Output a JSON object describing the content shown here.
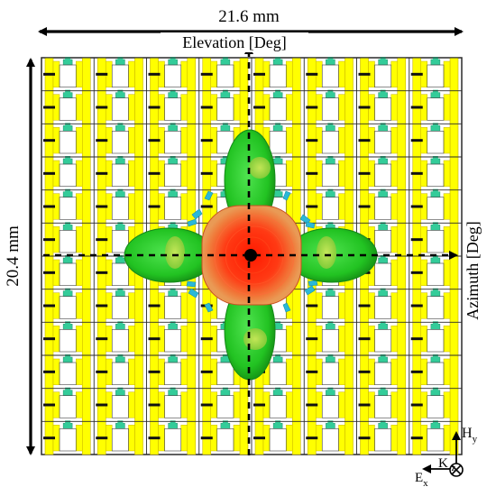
{
  "labels": {
    "width_dim": "21.6 mm",
    "height_dim": "20.4 mm",
    "elevation_axis": "Elevation [Deg]",
    "azimuth_axis": "Azimuth [Deg]",
    "h_field": "H",
    "h_sub": "y",
    "k_vector": "K",
    "k_sub": "-z",
    "e_field": "E",
    "e_sub": "x"
  },
  "grid": {
    "columns": 8,
    "rows": 12
  },
  "colors": {
    "strip": "#ffff00",
    "strip_edge": "#c8b400",
    "connector": "#33cc99",
    "cell_border": "#2a2a2a",
    "lobe": "#22cc22",
    "lobe_dark": "#189f18",
    "main_beam_outer": "#e86a2a",
    "main_beam_inner": "#ff2200",
    "cyan_ripple": "#2ab8d8",
    "dimension_line": "#000000"
  },
  "icons": [
    "double-arrow-icon",
    "axis-arrow-icon",
    "coordinate-triad-icon",
    "cross-into-page-icon"
  ]
}
